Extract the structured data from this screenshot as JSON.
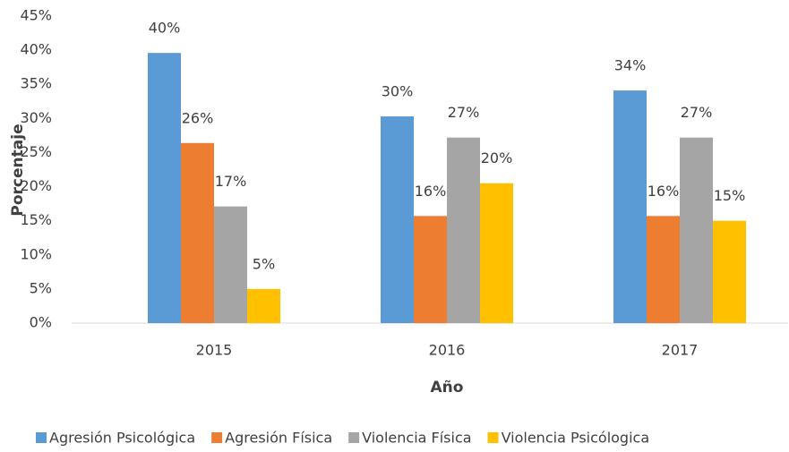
{
  "chart_data": {
    "type": "bar",
    "x_label": "Año",
    "y_label": "Porcentaje",
    "categories": [
      "2015",
      "2016",
      "2017"
    ],
    "series": [
      {
        "name": "Agresión Psicológica",
        "color": "#5b9bd5",
        "values": [
          39.6,
          30.3,
          34.1
        ],
        "value_labels": [
          "40%",
          "30%",
          "34%"
        ]
      },
      {
        "name": "Agresión Física",
        "color": "#ed7d31",
        "values": [
          26.4,
          15.7,
          15.7
        ],
        "value_labels": [
          "26%",
          "16%",
          "16%"
        ]
      },
      {
        "name": "Violencia Física",
        "color": "#a5a5a5",
        "values": [
          17.1,
          27.2,
          27.2
        ],
        "value_labels": [
          "17%",
          "27%",
          "27%"
        ]
      },
      {
        "name": "Violencia Psicólogica",
        "color": "#ffc000",
        "values": [
          5,
          20.5,
          15.0
        ],
        "value_labels": [
          "5%",
          "20%",
          "15%"
        ]
      }
    ],
    "ylim": [
      0,
      45
    ],
    "yticks": [
      {
        "value": 0,
        "label": "0%"
      },
      {
        "value": 5,
        "label": "5%"
      },
      {
        "value": 10,
        "label": "10%"
      },
      {
        "value": 15,
        "label": "15%"
      },
      {
        "value": 20,
        "label": "20%"
      },
      {
        "value": 25,
        "label": "25%"
      },
      {
        "value": 30,
        "label": "30%"
      },
      {
        "value": 35,
        "label": "35%"
      },
      {
        "value": 40,
        "label": "40%"
      },
      {
        "value": 45,
        "label": "45%"
      }
    ],
    "grid": false,
    "legend": "bottom"
  }
}
